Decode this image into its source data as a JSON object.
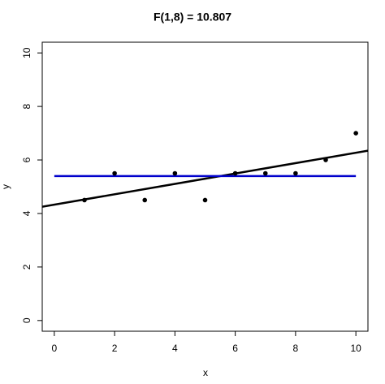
{
  "chart_data": {
    "type": "scatter",
    "title": "F(1,8) = 10.807",
    "x_label": "x",
    "y_label": "y",
    "x": [
      1,
      2,
      3,
      4,
      5,
      6,
      7,
      8,
      9,
      10
    ],
    "values": [
      4.5,
      5.5,
      4.5,
      5.5,
      4.5,
      5.5,
      5.5,
      5.5,
      6,
      7
    ],
    "color": "#000000",
    "regression_line": {
      "intercept": 4.33,
      "slope": 0.194,
      "color": "#000000"
    },
    "mean_line": {
      "value": 5.4,
      "color": "#0000cc"
    },
    "xlim": [
      -0.4,
      10.4
    ],
    "ylim": [
      -0.4,
      10.4
    ],
    "xticks": [
      0,
      2,
      4,
      6,
      8,
      10
    ],
    "yticks": [
      0,
      2,
      4,
      6,
      8,
      10
    ]
  }
}
